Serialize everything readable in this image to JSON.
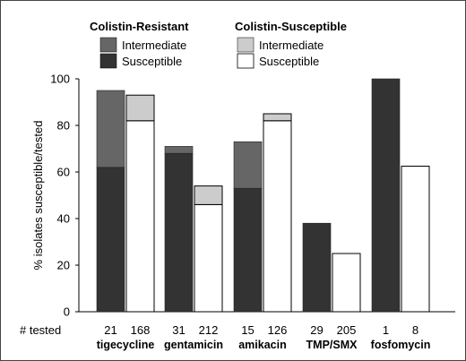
{
  "chart_data": {
    "type": "bar",
    "ylabel": "% isolates susceptible/tested",
    "ylim": [
      0,
      100
    ],
    "yticks": [
      "0",
      "20",
      "40",
      "60",
      "80",
      "100"
    ],
    "tested_label": "# tested",
    "legend": {
      "groups": [
        {
          "title": "Colistin-Resistant",
          "items": [
            "Intermediate",
            "Susceptible"
          ]
        },
        {
          "title": "Colistin-Susceptible",
          "items": [
            "Intermediate",
            "Susceptible"
          ]
        }
      ]
    },
    "colors": {
      "resistant_susceptible": "#333333",
      "resistant_intermediate": "#666666",
      "susceptible_susceptible": "#ffffff",
      "susceptible_intermediate": "#cccccc"
    },
    "categories": [
      "tigecycline",
      "gentamicin",
      "amikacin",
      "TMP/SMX",
      "fosfomycin"
    ],
    "tested": {
      "colistin_resistant": [
        "21",
        "31",
        "15",
        "29",
        "1"
      ],
      "colistin_susceptible": [
        "168",
        "212",
        "126",
        "205",
        "8"
      ]
    },
    "series": [
      {
        "group": "Colistin-Resistant",
        "stack": "Susceptible",
        "values": [
          62,
          68,
          53,
          38,
          100
        ]
      },
      {
        "group": "Colistin-Resistant",
        "stack": "Intermediate",
        "values": [
          33,
          3,
          20,
          0,
          0
        ]
      },
      {
        "group": "Colistin-Susceptible",
        "stack": "Susceptible",
        "values": [
          82,
          46,
          82,
          25,
          62.5
        ]
      },
      {
        "group": "Colistin-Susceptible",
        "stack": "Intermediate",
        "values": [
          11,
          8,
          3,
          0,
          0
        ]
      }
    ]
  }
}
